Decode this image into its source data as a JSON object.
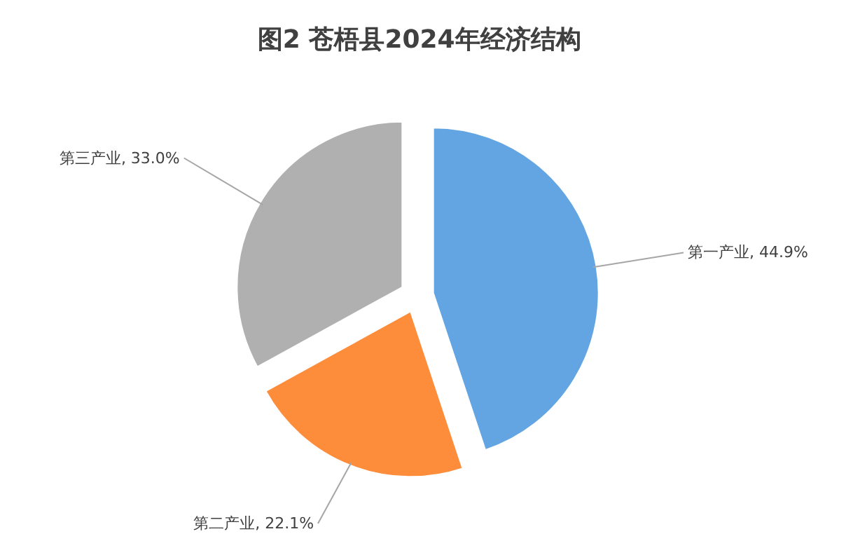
{
  "chart_data": {
    "type": "pie",
    "title": "图2  苍梧县2024年经济结构",
    "categories": [
      "第一产业",
      "第二产业",
      "第三产业"
    ],
    "values": [
      44.9,
      22.1,
      33.0
    ],
    "value_labels": [
      "44.9%",
      "22.1%",
      "33.0%"
    ],
    "colors": [
      "#63a5e3",
      "#fd8c3b",
      "#b0b0b0"
    ]
  }
}
